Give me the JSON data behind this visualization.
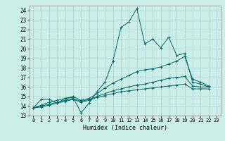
{
  "title": "",
  "xlabel": "Humidex (Indice chaleur)",
  "ylabel": "",
  "background_color": "#cceee8",
  "grid_color": "#aacccc",
  "line_color": "#006868",
  "xlim": [
    -0.5,
    23.5
  ],
  "ylim": [
    13,
    24.5
  ],
  "xticks": [
    0,
    1,
    2,
    3,
    4,
    5,
    6,
    7,
    8,
    9,
    10,
    11,
    12,
    13,
    14,
    15,
    16,
    17,
    18,
    19,
    20,
    21,
    22,
    23
  ],
  "yticks": [
    13,
    14,
    15,
    16,
    17,
    18,
    19,
    20,
    21,
    22,
    23,
    24
  ],
  "series": [
    [
      13.8,
      14.7,
      14.7,
      14.3,
      14.8,
      14.9,
      13.3,
      14.3,
      15.5,
      16.5,
      18.7,
      22.2,
      22.8,
      24.2,
      20.5,
      21.0,
      20.1,
      21.2,
      19.3,
      19.5,
      16.5,
      16.3,
      16.0
    ],
    [
      13.8,
      14.1,
      14.4,
      14.6,
      14.8,
      15.0,
      14.6,
      14.8,
      15.3,
      15.9,
      16.4,
      16.8,
      17.2,
      17.6,
      17.8,
      17.9,
      18.1,
      18.4,
      18.7,
      19.2,
      16.8,
      16.5,
      16.1
    ],
    [
      13.8,
      14.0,
      14.2,
      14.4,
      14.6,
      14.8,
      14.5,
      14.7,
      15.0,
      15.3,
      15.6,
      15.8,
      16.0,
      16.2,
      16.3,
      16.5,
      16.7,
      16.9,
      17.0,
      17.1,
      16.1,
      16.0,
      16.0
    ],
    [
      13.8,
      13.9,
      14.1,
      14.3,
      14.5,
      14.7,
      14.4,
      14.6,
      14.9,
      15.1,
      15.3,
      15.5,
      15.6,
      15.7,
      15.8,
      15.9,
      16.0,
      16.1,
      16.2,
      16.3,
      15.8,
      15.8,
      15.8
    ]
  ]
}
